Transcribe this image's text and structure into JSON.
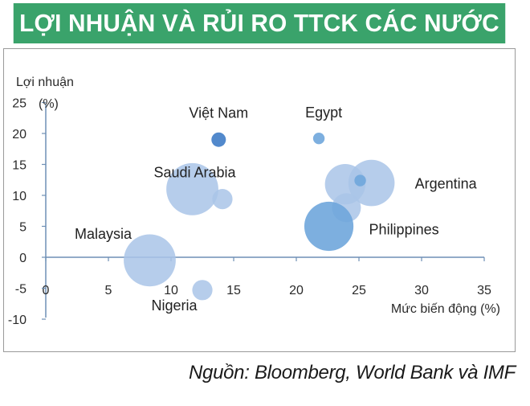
{
  "header": {
    "title": "LỢI NHUẬN VÀ RỦI RO TTCK CÁC NƯỚC"
  },
  "source": "Nguồn: Bloomberg, World Bank và IMF",
  "colors": {
    "header_bg": "#3aa36b",
    "bubble_light": "#a9c4e8",
    "bubble_mid": "#6fa6dc",
    "bubble_dark": "#3f7cc7",
    "axis": "#6e8fb5"
  },
  "chart_data": {
    "type": "scatter",
    "title": "LỢI NHUẬN VÀ RỦI RO TTCK CÁC NƯỚC",
    "xlabel": "Mức biến động (%)",
    "ylabel_line1": "Lợi nhuận",
    "ylabel_line2": "(%)",
    "xlim": [
      0,
      35
    ],
    "ylim": [
      -10,
      25
    ],
    "x_ticks": [
      "0",
      "5",
      "10",
      "15",
      "20",
      "25",
      "30",
      "35"
    ],
    "y_ticks": [
      "25",
      "20",
      "15",
      "10",
      "5",
      "0",
      "-5",
      "-10"
    ],
    "points": [
      {
        "name": "Việt Nam",
        "x": 13.8,
        "y": 19.0,
        "size": 2.5,
        "shade": "dark",
        "label": "Việt Nam"
      },
      {
        "name": "Egypt",
        "x": 21.8,
        "y": 19.2,
        "size": 2.0,
        "shade": "mid",
        "label": "Egypt"
      },
      {
        "name": "Saudi Arabia",
        "x": 11.7,
        "y": 11.0,
        "size": 9.0,
        "shade": "light",
        "label": "Saudi Arabia"
      },
      {
        "name": "",
        "x": 14.1,
        "y": 9.4,
        "size": 3.5,
        "shade": "light",
        "label": ""
      },
      {
        "name": "Argentina",
        "x": 26.0,
        "y": 12.0,
        "size": 8.0,
        "shade": "light",
        "label": "Argentina"
      },
      {
        "name": "",
        "x": 23.9,
        "y": 11.8,
        "size": 7.0,
        "shade": "light",
        "label": ""
      },
      {
        "name": "",
        "x": 25.1,
        "y": 12.4,
        "size": 2.0,
        "shade": "mid",
        "label": ""
      },
      {
        "name": "",
        "x": 24.0,
        "y": 8.0,
        "size": 5.0,
        "shade": "light",
        "label": ""
      },
      {
        "name": "Philippines",
        "x": 22.6,
        "y": 5.0,
        "size": 8.5,
        "shade": "mid",
        "label": "Philippines"
      },
      {
        "name": "Malaysia",
        "x": 8.3,
        "y": -0.5,
        "size": 9.0,
        "shade": "light",
        "label": "Malaysia"
      },
      {
        "name": "Nigeria",
        "x": 12.5,
        "y": -5.3,
        "size": 3.5,
        "shade": "light",
        "label": "Nigeria"
      }
    ]
  }
}
